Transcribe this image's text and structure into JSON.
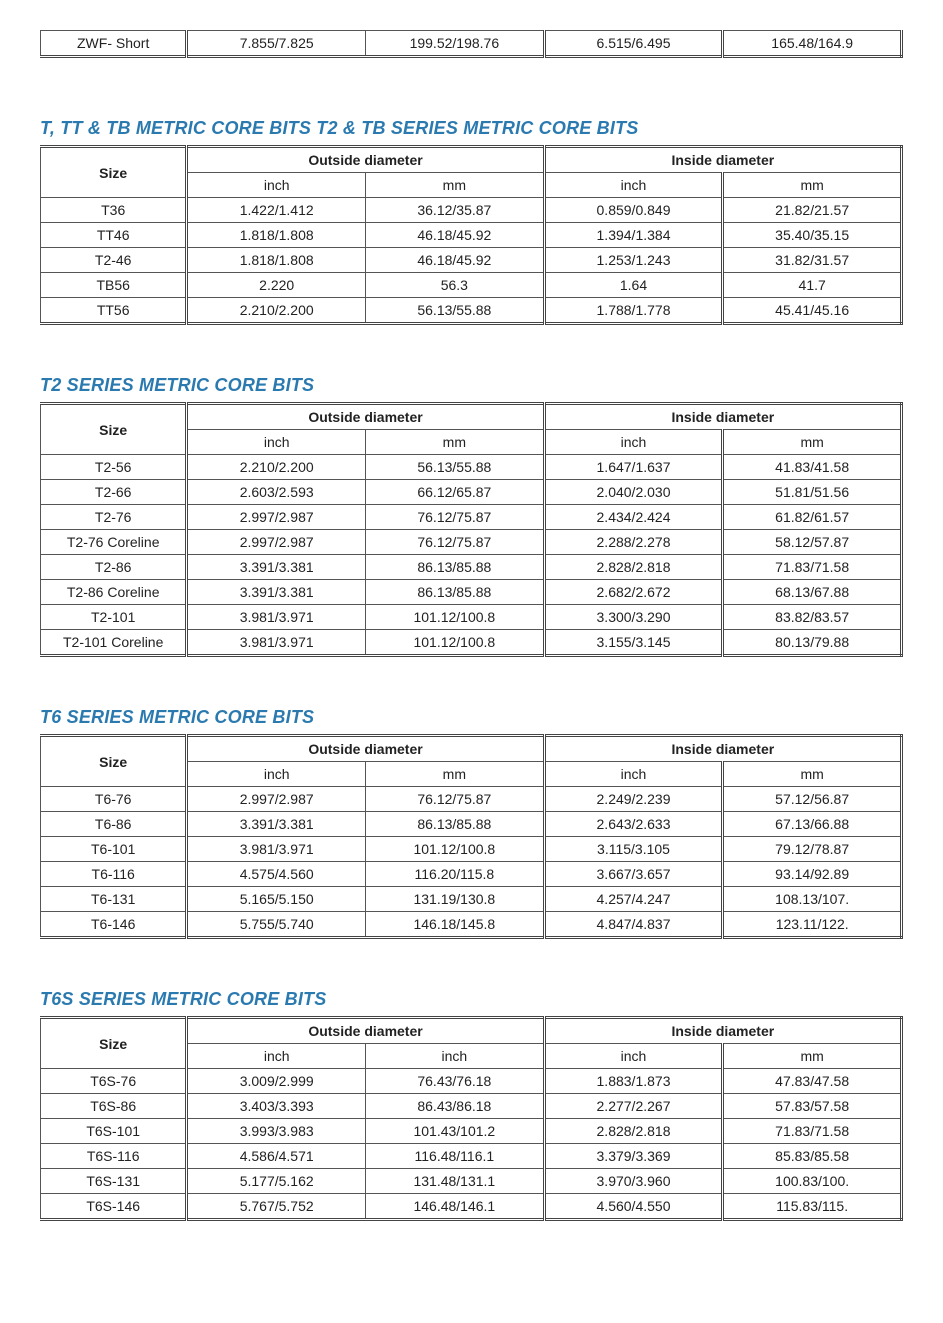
{
  "top_fragment": {
    "row": [
      "ZWF- Short",
      "7.855/7.825",
      "199.52/198.76",
      "6.515/6.495",
      "165.48/164.9"
    ]
  },
  "common_headers": {
    "size": "Size",
    "od": "Outside diameter",
    "id": "Inside diameter",
    "inch": "inch",
    "mm": "mm"
  },
  "sections": [
    {
      "title": "T, TT & TB METRIC CORE BITS T2 & TB SERIES METRIC CORE BITS",
      "sub2_b": "mm",
      "rows": [
        [
          "T36",
          "1.422/1.412",
          "36.12/35.87",
          "0.859/0.849",
          "21.82/21.57"
        ],
        [
          "TT46",
          "1.818/1.808",
          "46.18/45.92",
          "1.394/1.384",
          "35.40/35.15"
        ],
        [
          "T2-46",
          "1.818/1.808",
          "46.18/45.92",
          "1.253/1.243",
          "31.82/31.57"
        ],
        [
          "TB56",
          "2.220",
          "56.3",
          "1.64",
          "41.7"
        ],
        [
          "TT56",
          "2.210/2.200",
          "56.13/55.88",
          "1.788/1.778",
          "45.41/45.16"
        ]
      ]
    },
    {
      "title": "T2 SERIES METRIC CORE BITS",
      "sub2_b": "mm",
      "rows": [
        [
          "T2-56",
          "2.210/2.200",
          "56.13/55.88",
          "1.647/1.637",
          "41.83/41.58"
        ],
        [
          "T2-66",
          "2.603/2.593",
          "66.12/65.87",
          "2.040/2.030",
          "51.81/51.56"
        ],
        [
          "T2-76",
          "2.997/2.987",
          "76.12/75.87",
          "2.434/2.424",
          "61.82/61.57"
        ],
        [
          "T2-76 Coreline",
          "2.997/2.987",
          "76.12/75.87",
          "2.288/2.278",
          "58.12/57.87"
        ],
        [
          "T2-86",
          "3.391/3.381",
          "86.13/85.88",
          "2.828/2.818",
          "71.83/71.58"
        ],
        [
          "T2-86 Coreline",
          "3.391/3.381",
          "86.13/85.88",
          "2.682/2.672",
          "68.13/67.88"
        ],
        [
          "T2-101",
          "3.981/3.971",
          "101.12/100.8",
          "3.300/3.290",
          "83.82/83.57"
        ],
        [
          "T2-101 Coreline",
          "3.981/3.971",
          "101.12/100.8",
          "3.155/3.145",
          "80.13/79.88"
        ]
      ]
    },
    {
      "title": "T6 SERIES METRIC CORE BITS",
      "sub2_b": "mm",
      "rows": [
        [
          "T6-76",
          "2.997/2.987",
          "76.12/75.87",
          "2.249/2.239",
          "57.12/56.87"
        ],
        [
          "T6-86",
          "3.391/3.381",
          "86.13/85.88",
          "2.643/2.633",
          "67.13/66.88"
        ],
        [
          "T6-101",
          "3.981/3.971",
          "101.12/100.8",
          "3.115/3.105",
          "79.12/78.87"
        ],
        [
          "T6-116",
          "4.575/4.560",
          "116.20/115.8",
          "3.667/3.657",
          "93.14/92.89"
        ],
        [
          "T6-131",
          "5.165/5.150",
          "131.19/130.8",
          "4.257/4.247",
          "108.13/107."
        ],
        [
          "T6-146",
          "5.755/5.740",
          "146.18/145.8",
          "4.847/4.837",
          "123.11/122."
        ]
      ]
    },
    {
      "title": "T6S SERIES METRIC CORE BITS",
      "sub2_b": "inch",
      "rows": [
        [
          "T6S-76",
          "3.009/2.999",
          "76.43/76.18",
          "1.883/1.873",
          "47.83/47.58"
        ],
        [
          "T6S-86",
          "3.403/3.393",
          "86.43/86.18",
          "2.277/2.267",
          "57.83/57.58"
        ],
        [
          "T6S-101",
          "3.993/3.983",
          "101.43/101.2",
          "2.828/2.818",
          "71.83/71.58"
        ],
        [
          "T6S-116",
          "4.586/4.571",
          "116.48/116.1",
          "3.379/3.369",
          "85.83/85.58"
        ],
        [
          "T6S-131",
          "5.177/5.162",
          "131.48/131.1",
          "3.970/3.960",
          "100.83/100."
        ],
        [
          "T6S-146",
          "5.767/5.752",
          "146.48/146.1",
          "4.560/4.550",
          "115.83/115."
        ]
      ]
    }
  ]
}
